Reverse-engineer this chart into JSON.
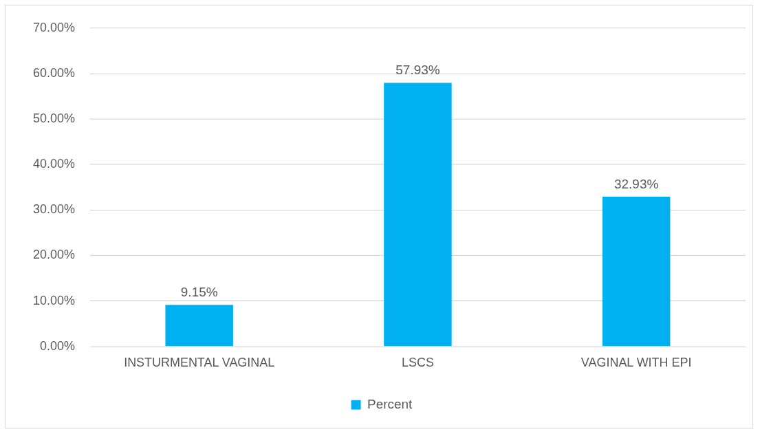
{
  "chart_data": {
    "type": "bar",
    "categories": [
      "INSTURMENTAL VAGINAL",
      "LSCS",
      "VAGINAL WITH EPI"
    ],
    "series": [
      {
        "name": "Percent",
        "color": "#00b0f0",
        "values": [
          9.15,
          57.93,
          32.93
        ],
        "value_labels": [
          "9.15%",
          "57.93%",
          "32.93%"
        ]
      }
    ],
    "ylim": [
      0,
      70
    ],
    "yticks": [
      {
        "value": 0,
        "label": "0.00%"
      },
      {
        "value": 10,
        "label": "10.00%"
      },
      {
        "value": 20,
        "label": "20.00%"
      },
      {
        "value": 30,
        "label": "30.00%"
      },
      {
        "value": 40,
        "label": "40.00%"
      },
      {
        "value": 50,
        "label": "50.00%"
      },
      {
        "value": 60,
        "label": "60.00%"
      },
      {
        "value": 70,
        "label": "70.00%"
      }
    ],
    "grid": "y",
    "legend": "bottom"
  }
}
